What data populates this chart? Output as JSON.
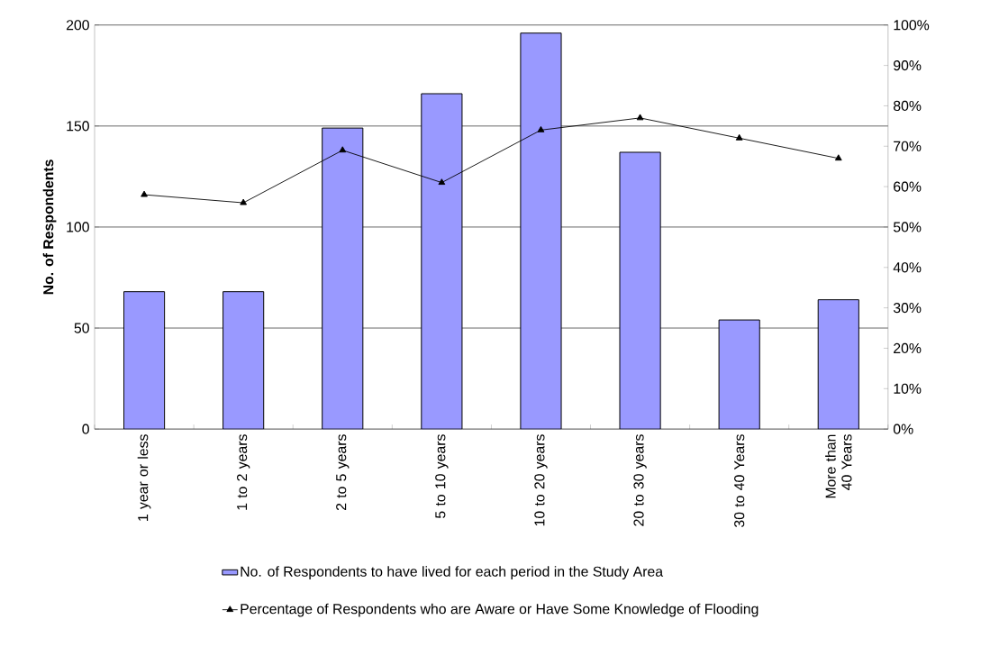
{
  "chart_data": {
    "type": "bar",
    "ylabel": "No. of Respondents",
    "categories": [
      "1 year or less",
      "1 to 2 years",
      "2 to 5 years",
      "5 to 10 years",
      "10 to 20 years",
      "20 to 30 years",
      "30 to 40 Years",
      "More than 40 Years"
    ],
    "series": [
      {
        "name": "No. of Respondents to have lived for each period in the Study Area",
        "color": "#9999ff",
        "values": [
          68,
          68,
          149,
          166,
          196,
          137,
          54,
          64
        ]
      },
      {
        "name": "Percentage of Respondents who are Aware or Have Some Knowledge of Flooding",
        "type": "line",
        "axis": "y2",
        "color": "#000000",
        "marker": "triangle",
        "values": [
          58,
          56,
          69,
          61,
          74,
          77,
          72,
          67
        ]
      }
    ],
    "ylim": [
      0,
      200
    ],
    "yticks": [
      0,
      50,
      100,
      150,
      200
    ],
    "y2lim": [
      0,
      100
    ],
    "y2ticks": [
      {
        "value": 0,
        "label": "0%"
      },
      {
        "value": 10,
        "label": "10%"
      },
      {
        "value": 20,
        "label": "20%"
      },
      {
        "value": 30,
        "label": "30%"
      },
      {
        "value": 40,
        "label": "40%"
      },
      {
        "value": 50,
        "label": "50%"
      },
      {
        "value": 60,
        "label": "60%"
      },
      {
        "value": 70,
        "label": "70%"
      },
      {
        "value": 80,
        "label": "80%"
      },
      {
        "value": 90,
        "label": "90%"
      },
      {
        "value": 100,
        "label": "100%"
      }
    ],
    "grid": "y",
    "legend": "bottom"
  }
}
